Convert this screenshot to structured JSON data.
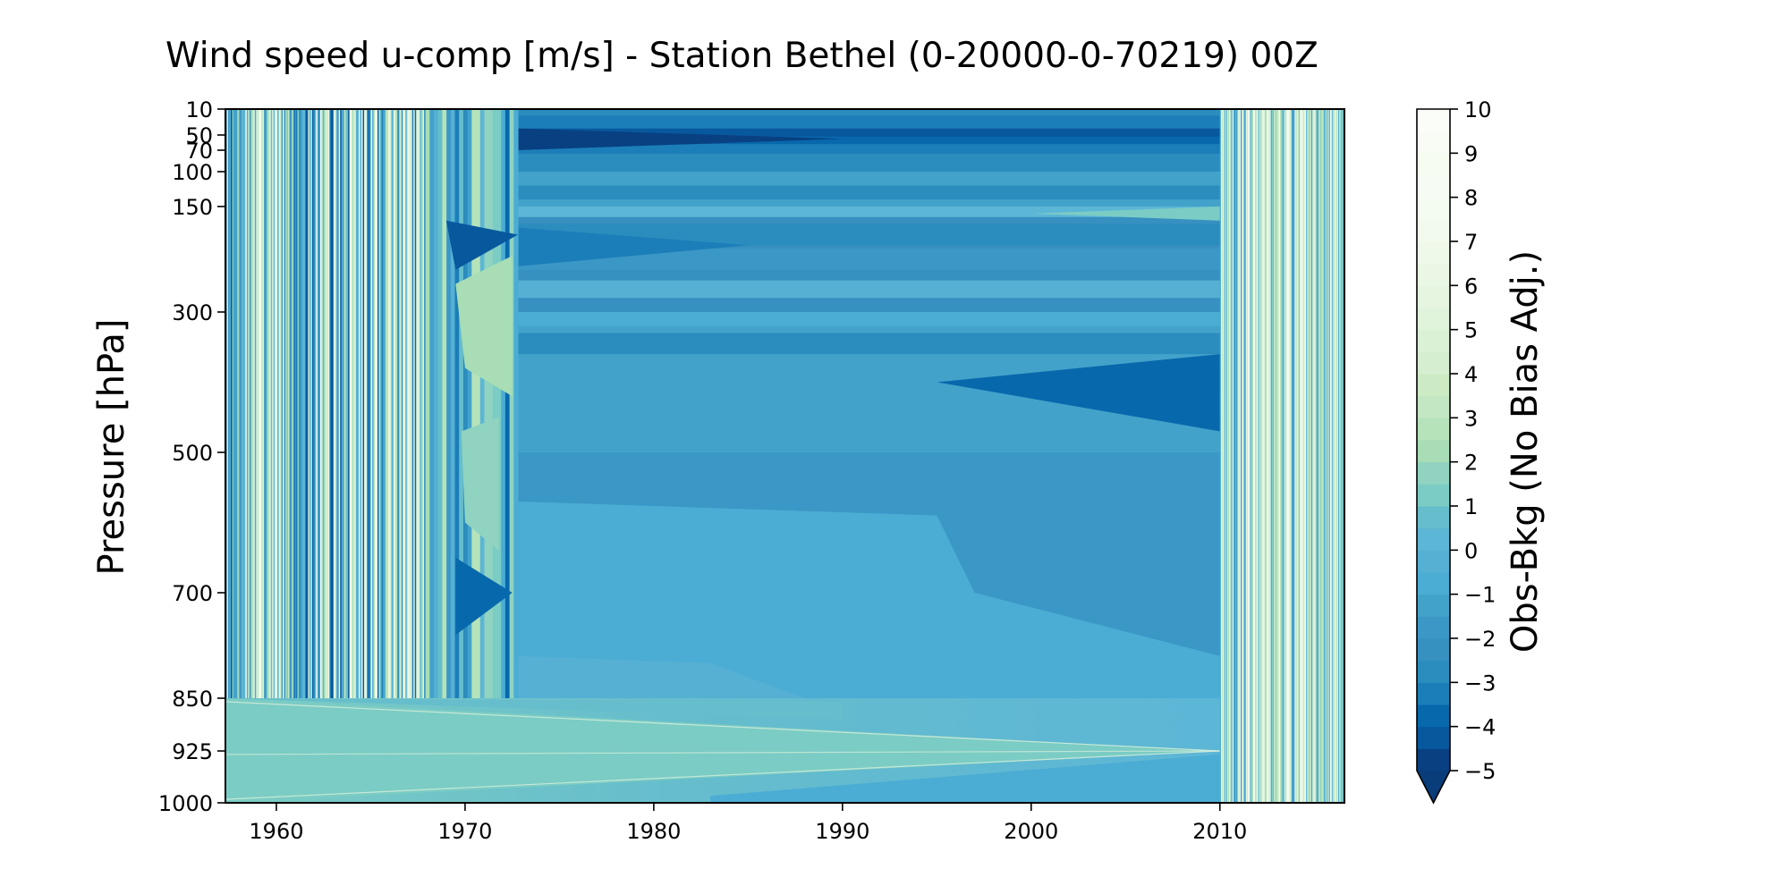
{
  "chart_data": {
    "type": "heatmap",
    "title": "Wind speed u-comp [m/s] - Station Bethel (0-20000-0-70219) 00Z",
    "xlabel": "",
    "ylabel": "Pressure [hPa]",
    "xlim": [
      1957.3,
      2016.6
    ],
    "x_ticks": [
      1960,
      1970,
      1980,
      1990,
      2000,
      2010
    ],
    "x_tick_labels": [
      "1960",
      "1970",
      "1980",
      "1990",
      "2000",
      "2010"
    ],
    "y_levels": [
      10,
      50,
      70,
      100,
      150,
      300,
      500,
      700,
      850,
      925,
      1000
    ],
    "y_tick_labels": [
      "10",
      "50",
      "70",
      "100",
      "150",
      "300",
      "500",
      "700",
      "850",
      "925",
      "1000"
    ],
    "y_inverted": true,
    "colorbar": {
      "label": "Obs-Bkg (No Bias Adj.)",
      "levels": [
        -5,
        -4.5,
        -4,
        -3.5,
        -3,
        -2.5,
        -2,
        -1.5,
        -1,
        -0.5,
        0,
        0.5,
        1,
        1.5,
        2,
        2.5,
        3,
        3.5,
        4,
        4.5,
        5,
        5.5,
        6,
        6.5,
        7,
        7.5,
        8,
        8.5,
        9,
        9.5,
        10
      ],
      "ticks": [
        -5,
        -4,
        -3,
        -2,
        -1,
        0,
        1,
        2,
        3,
        4,
        5,
        6,
        7,
        8,
        9,
        10
      ],
      "tick_labels": [
        "−5",
        "−4",
        "−3",
        "−2",
        "−1",
        "0",
        "1",
        "2",
        "3",
        "4",
        "5",
        "6",
        "7",
        "8",
        "9",
        "10"
      ],
      "extend": "min",
      "colormap": "GnBu_r",
      "colors": [
        "#084081",
        "#08589e",
        "#0868ac",
        "#1c7eb8",
        "#2b8cbe",
        "#3690c0",
        "#3b97c6",
        "#43a2ca",
        "#4bacd4",
        "#55b0d3",
        "#5cb6d6",
        "#66bdcc",
        "#7bccc4",
        "#8fd3c0",
        "#a8ddb5",
        "#b6e3b9",
        "#c3e7c3",
        "#ccebc5",
        "#d5eed0",
        "#dbf1d6",
        "#e0f3db",
        "#e5f5e0",
        "#eaf7e4",
        "#eff9ea",
        "#f2faee",
        "#f4fbf0",
        "#f6fcf3",
        "#f7fcf0",
        "#f8fcf5",
        "#fafdf8"
      ],
      "under_color": "#083d7a"
    },
    "grid": false,
    "regions": [
      {
        "x": [
          1957.3,
          1967.9
        ],
        "p": [
          10,
          850
        ],
        "pattern": "high-variability vertical striping, values about -4 to 8"
      },
      {
        "x": [
          1967.9,
          1972.8
        ],
        "p": [
          10,
          850
        ],
        "pattern": "sparse contour blobs, values about -4 to 6"
      },
      {
        "x": [
          1972.8,
          2010.0
        ],
        "p": [
          10,
          850
        ],
        "pattern": "smooth horizontal bands, values mostly -3 to 2"
      },
      {
        "x": [
          1957.3,
          2010.0
        ],
        "p": [
          850,
          1000
        ],
        "pattern": "smooth wedges, values about 0 to 3"
      },
      {
        "x": [
          2010.0,
          2016.6
        ],
        "p": [
          10,
          1000
        ],
        "pattern": "dense vertical striping, values about -2 to 8"
      }
    ]
  }
}
